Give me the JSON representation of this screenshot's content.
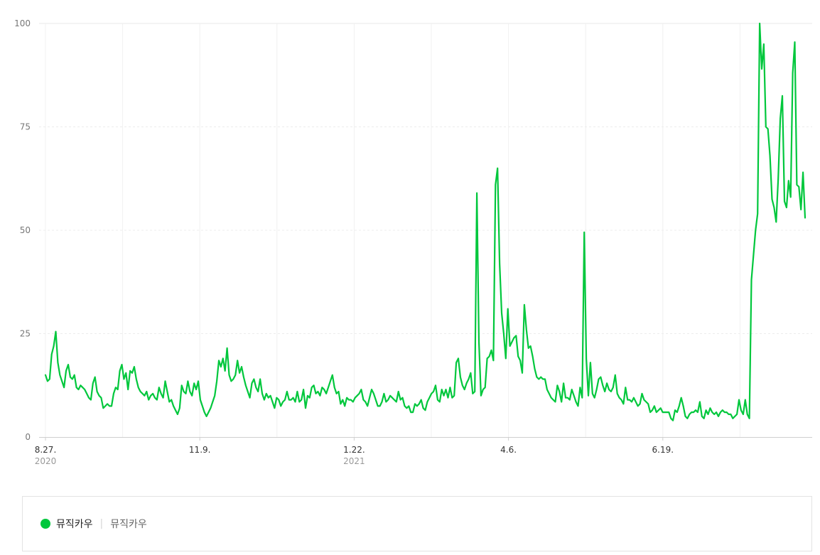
{
  "chart_data": {
    "type": "line",
    "yticks": [
      "0",
      "25",
      "50",
      "75",
      "100"
    ],
    "ylim": [
      0,
      100
    ],
    "grid": true,
    "xticks": [
      {
        "label": "8.27.",
        "year": "2020"
      },
      {
        "label": "11.9.",
        "year": ""
      },
      {
        "label": "1.22.",
        "year": "2021"
      },
      {
        "label": "4.6.",
        "year": ""
      },
      {
        "label": "6.19.",
        "year": ""
      }
    ],
    "series": [
      {
        "name": "뮤직카우",
        "color": "#00c73c",
        "values": [
          15,
          13.5,
          14,
          20,
          22,
          25.5,
          18,
          15,
          13.5,
          12,
          16,
          17.5,
          14.5,
          14,
          15,
          12,
          11.5,
          12.5,
          12,
          11.5,
          10.5,
          9.5,
          9,
          13,
          14.5,
          11,
          10,
          9.5,
          7,
          7.5,
          8,
          7.5,
          7.5,
          10.5,
          12,
          11.5,
          16,
          17.5,
          14,
          15.5,
          11.5,
          16,
          15.5,
          17,
          14,
          12,
          11,
          10.5,
          10,
          11,
          9,
          10,
          10.5,
          9.5,
          9,
          12,
          10.5,
          9.5,
          13.5,
          11,
          8.5,
          9,
          7.5,
          6.5,
          5.5,
          7,
          12.5,
          11,
          10.5,
          13.5,
          11,
          10,
          13,
          11.5,
          13.5,
          9,
          7.5,
          6,
          5,
          6,
          7,
          8.5,
          10,
          13.5,
          18.5,
          17,
          19,
          16,
          21.5,
          15,
          13.5,
          14,
          15,
          18.5,
          15.5,
          17,
          14.5,
          12.5,
          11,
          9.5,
          13,
          14,
          12,
          11,
          14,
          10.5,
          9,
          10.5,
          9.5,
          10,
          8.5,
          7,
          9.5,
          9,
          7.5,
          8.5,
          9,
          11,
          9,
          9,
          9.5,
          8.5,
          11,
          8.5,
          9,
          11.5,
          7,
          10,
          9.5,
          12,
          12.5,
          10.5,
          11,
          10,
          12,
          11.5,
          10.5,
          12,
          13.5,
          15,
          12,
          10.5,
          11,
          8,
          9,
          7.5,
          9.5,
          9,
          9,
          8.5,
          9.5,
          10,
          10.5,
          11.5,
          9,
          8.5,
          7.5,
          9.5,
          11.5,
          10.5,
          9,
          7.5,
          7.5,
          8.5,
          10.5,
          8.5,
          9,
          10,
          9.5,
          9,
          8.5,
          11,
          9,
          9.5,
          7.5,
          7,
          7.5,
          6,
          6,
          8,
          7.5,
          8,
          9,
          7,
          6.5,
          8.5,
          9.5,
          10.5,
          11,
          12.5,
          9,
          8.5,
          11.5,
          10,
          11.5,
          9.5,
          12,
          9.5,
          10,
          18,
          19,
          14.5,
          12.5,
          11.5,
          13,
          14,
          15.5,
          10.5,
          11,
          59,
          23,
          10,
          11.5,
          12,
          19,
          19.5,
          21,
          18.5,
          61,
          65,
          42,
          30,
          25,
          19,
          31,
          22,
          23,
          24,
          24.5,
          19.5,
          18.5,
          15.5,
          32,
          26,
          21.5,
          22,
          19.5,
          16.5,
          14.5,
          14,
          14.5,
          14,
          14,
          11.5,
          10.5,
          9.5,
          9,
          8.5,
          12.5,
          11,
          8.5,
          13,
          9.5,
          9.5,
          9,
          11.5,
          10,
          8.5,
          7.5,
          12,
          9.5,
          49.5,
          19,
          10,
          18,
          10.5,
          9.5,
          11.5,
          14,
          14.5,
          12.5,
          11,
          13,
          11.5,
          11,
          12,
          15,
          10.5,
          9.5,
          9,
          8,
          12,
          9,
          9,
          8.5,
          9.5,
          8.5,
          7.5,
          8,
          10.5,
          9,
          8.5,
          8,
          6,
          6.5,
          7.5,
          6,
          6.5,
          7,
          6,
          6,
          6,
          6,
          4.5,
          4,
          6.5,
          6,
          7.5,
          9.5,
          7.5,
          5,
          4.5,
          5.5,
          6,
          6,
          6.5,
          6,
          8.5,
          5,
          4.5,
          6.5,
          5.5,
          7,
          6,
          5.5,
          6,
          5,
          6,
          6.5,
          6,
          6,
          5.5,
          5.5,
          4.5,
          5,
          5.5,
          9,
          6.5,
          5.5,
          9,
          5.5,
          4.5,
          38,
          44,
          50,
          54,
          100,
          89,
          95,
          75,
          74.5,
          68,
          57.5,
          55.5,
          52,
          62.5,
          77,
          82.5,
          57,
          55.5,
          62,
          58,
          88,
          95.5,
          61,
          60.5,
          55,
          64,
          53
        ]
      }
    ]
  },
  "legend": {
    "name": "뮤직카우",
    "separator": "|",
    "term": "뮤직카우"
  }
}
